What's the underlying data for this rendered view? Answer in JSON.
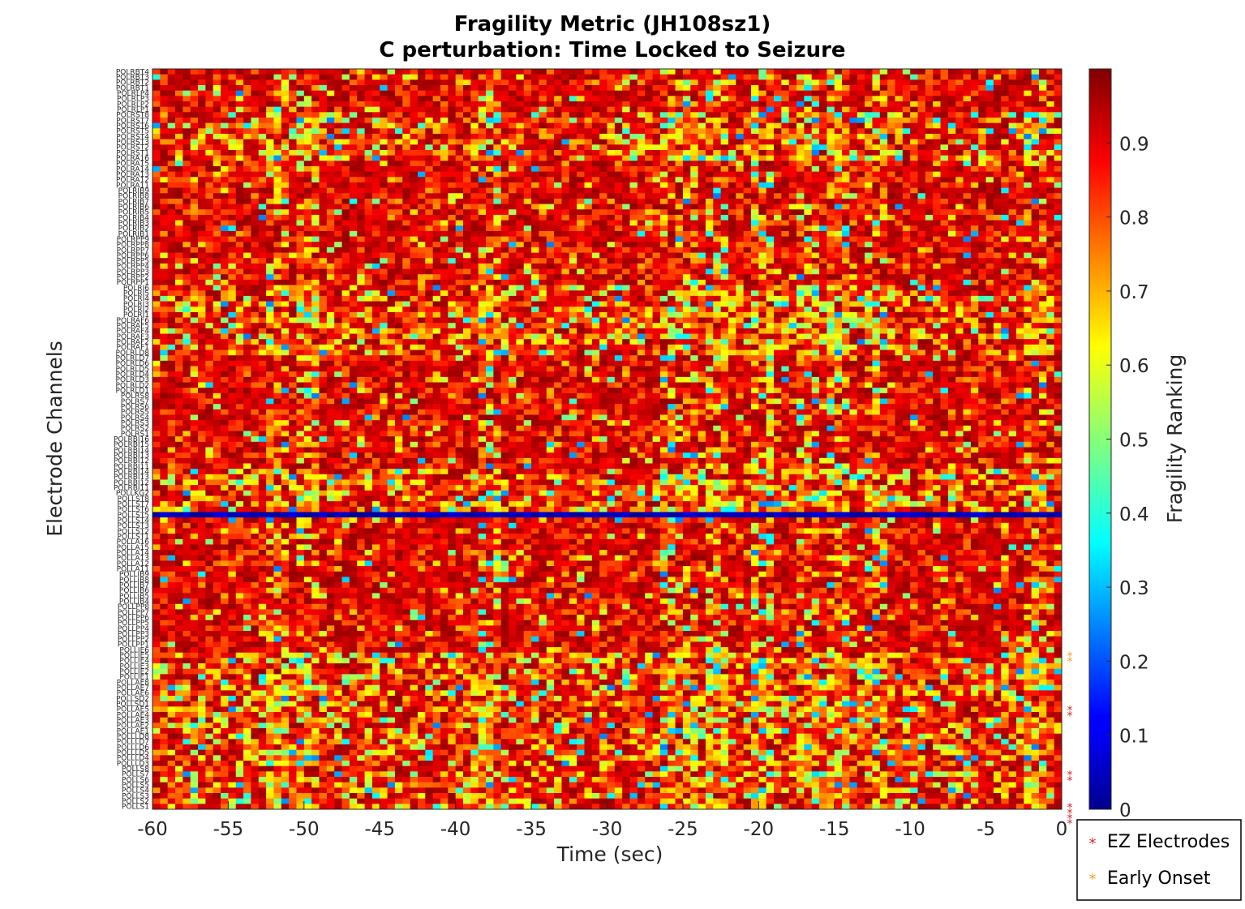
{
  "chart_data": {
    "type": "heatmap",
    "title": "Fragility Metric (JH108sz1)",
    "subtitle": "C perturbation:  Time Locked to Seizure",
    "xlabel": "Time (sec)",
    "ylabel": "Electrode Channels",
    "xlim": [
      -60,
      0
    ],
    "x_ticks": [
      "-60",
      "-55",
      "-50",
      "-45",
      "-40",
      "-35",
      "-30",
      "-25",
      "-20",
      "-15",
      "-10",
      "-5",
      "0"
    ],
    "x_tick_values": [
      -60,
      -55,
      -50,
      -45,
      -40,
      -35,
      -30,
      -25,
      -20,
      -15,
      -10,
      -5,
      0
    ],
    "colorbar": {
      "label": "Fragility Ranking",
      "range": [
        0,
        1
      ],
      "colormap": "jet",
      "ticks": [
        "0",
        "0.1",
        "0.2",
        "0.3",
        "0.4",
        "0.5",
        "0.6",
        "0.7",
        "0.8",
        "0.9"
      ],
      "tick_values": [
        0,
        0.1,
        0.2,
        0.3,
        0.4,
        0.5,
        0.6,
        0.7,
        0.8,
        0.9
      ]
    },
    "legend": {
      "placement": "bottom-right outside",
      "entries": [
        {
          "label": "EZ Electrodes",
          "marker": "*",
          "color": "#d62728"
        },
        {
          "label": "Early Onset",
          "marker": "*",
          "color": "#f0a030"
        }
      ]
    },
    "channels": [
      "POLRBT4",
      "POLRBT3",
      "POLRBT2",
      "POLRBT1",
      "POLRLP4",
      "POLRLP3",
      "POLRLP2",
      "POLRLP1",
      "POLRST8",
      "POLRST7",
      "POLRST6",
      "POLRST5",
      "POLRST4",
      "POLRST3",
      "POLRST2",
      "POLRST1",
      "POLRA16",
      "POLRA15",
      "POLRA14",
      "POLRA13",
      "POLRA12",
      "POLRA11",
      "POLRIB9",
      "POLRIB8",
      "POLRIB7",
      "POLRIB6",
      "POLRIB5",
      "POLRIB4",
      "POLRIB3",
      "POLRIB2",
      "POLRIB1",
      "POLRPP9",
      "POLRPP8",
      "POLRPP7",
      "POLRPP6",
      "POLRPP5",
      "POLRPP4",
      "POLRPP3",
      "POLRPP2",
      "POLRPP1",
      "POLRI6",
      "POLRI5",
      "POLRI4",
      "POLRI3",
      "POLRI2",
      "POLRI1",
      "POLRAF6",
      "POLRAF5",
      "POLRAF4",
      "POLRAF3",
      "POLRAF2",
      "POLRAF1",
      "POLRLD8",
      "POLRLD7",
      "POLRLD6",
      "POLRLD5",
      "POLRLD4",
      "POLRLD3",
      "POLRLD2",
      "POLRLD1",
      "POLRS8",
      "POLRS7",
      "POLRS6",
      "POLRS5",
      "POLRS4",
      "POLRS3",
      "POLRS2",
      "POLRS1",
      "POLRBI16",
      "POLRBI15",
      "POLRBI14",
      "POLRBI13",
      "POLRBI12",
      "POLRBI11",
      "POLRBI14",
      "POLRBI13",
      "POLRBI12",
      "POLRBI11",
      "POLLKG2",
      "POLLST8",
      "POLLST7",
      "POLLST6",
      "POLLST5",
      "POLLST4",
      "POLLST3",
      "POLLST2",
      "POLLST1",
      "POLLA16",
      "POLLA15",
      "POLLA14",
      "POLLA13",
      "POLLA12",
      "POLLA11",
      "POLLIB9",
      "POLLIB8",
      "POLLIB7",
      "POLLIB6",
      "POLLIB5",
      "POLLIB4",
      "POLLPP8",
      "POLLPP7",
      "POLLPP6",
      "POLLPP5",
      "POLLPP4",
      "POLLPP3",
      "POLLPP2",
      "POLLPP1",
      "POLLIE6",
      "POLLIE5",
      "POLLIE4",
      "POLLIE3",
      "POLLIE2",
      "POLLIE1",
      "POLLAE8",
      "POLLAE7",
      "POLLAE6",
      "POLLSD2",
      "POLLSD1",
      "POLLAE5",
      "POLLAE4",
      "POLLAE3",
      "POLLAE2",
      "POLLAE1",
      "POLLLD8",
      "POLLLD7",
      "POLLLD6",
      "POLLLD5",
      "POLLLD4",
      "POLLLD3",
      "POLLS8",
      "POLLS7",
      "POLLS6",
      "POLLS5",
      "POLLS4",
      "POLLS3",
      "POLLS2",
      "POLLS1"
    ],
    "ez_channels": [
      118,
      119,
      130,
      131,
      136,
      137,
      138,
      139
    ],
    "early_onset_channels": [
      108,
      109
    ],
    "time_bins": 120,
    "low_row": 82,
    "noisy_columns_sec": [
      -52,
      -50,
      -38,
      -26,
      -25,
      -23,
      -20,
      -17,
      -15,
      -12.5,
      -2
    ],
    "noisy_row_bands": [
      [
        8,
        16
      ],
      [
        40,
        52
      ],
      [
        74,
        81
      ],
      [
        108,
        128
      ],
      [
        130,
        139
      ]
    ]
  }
}
